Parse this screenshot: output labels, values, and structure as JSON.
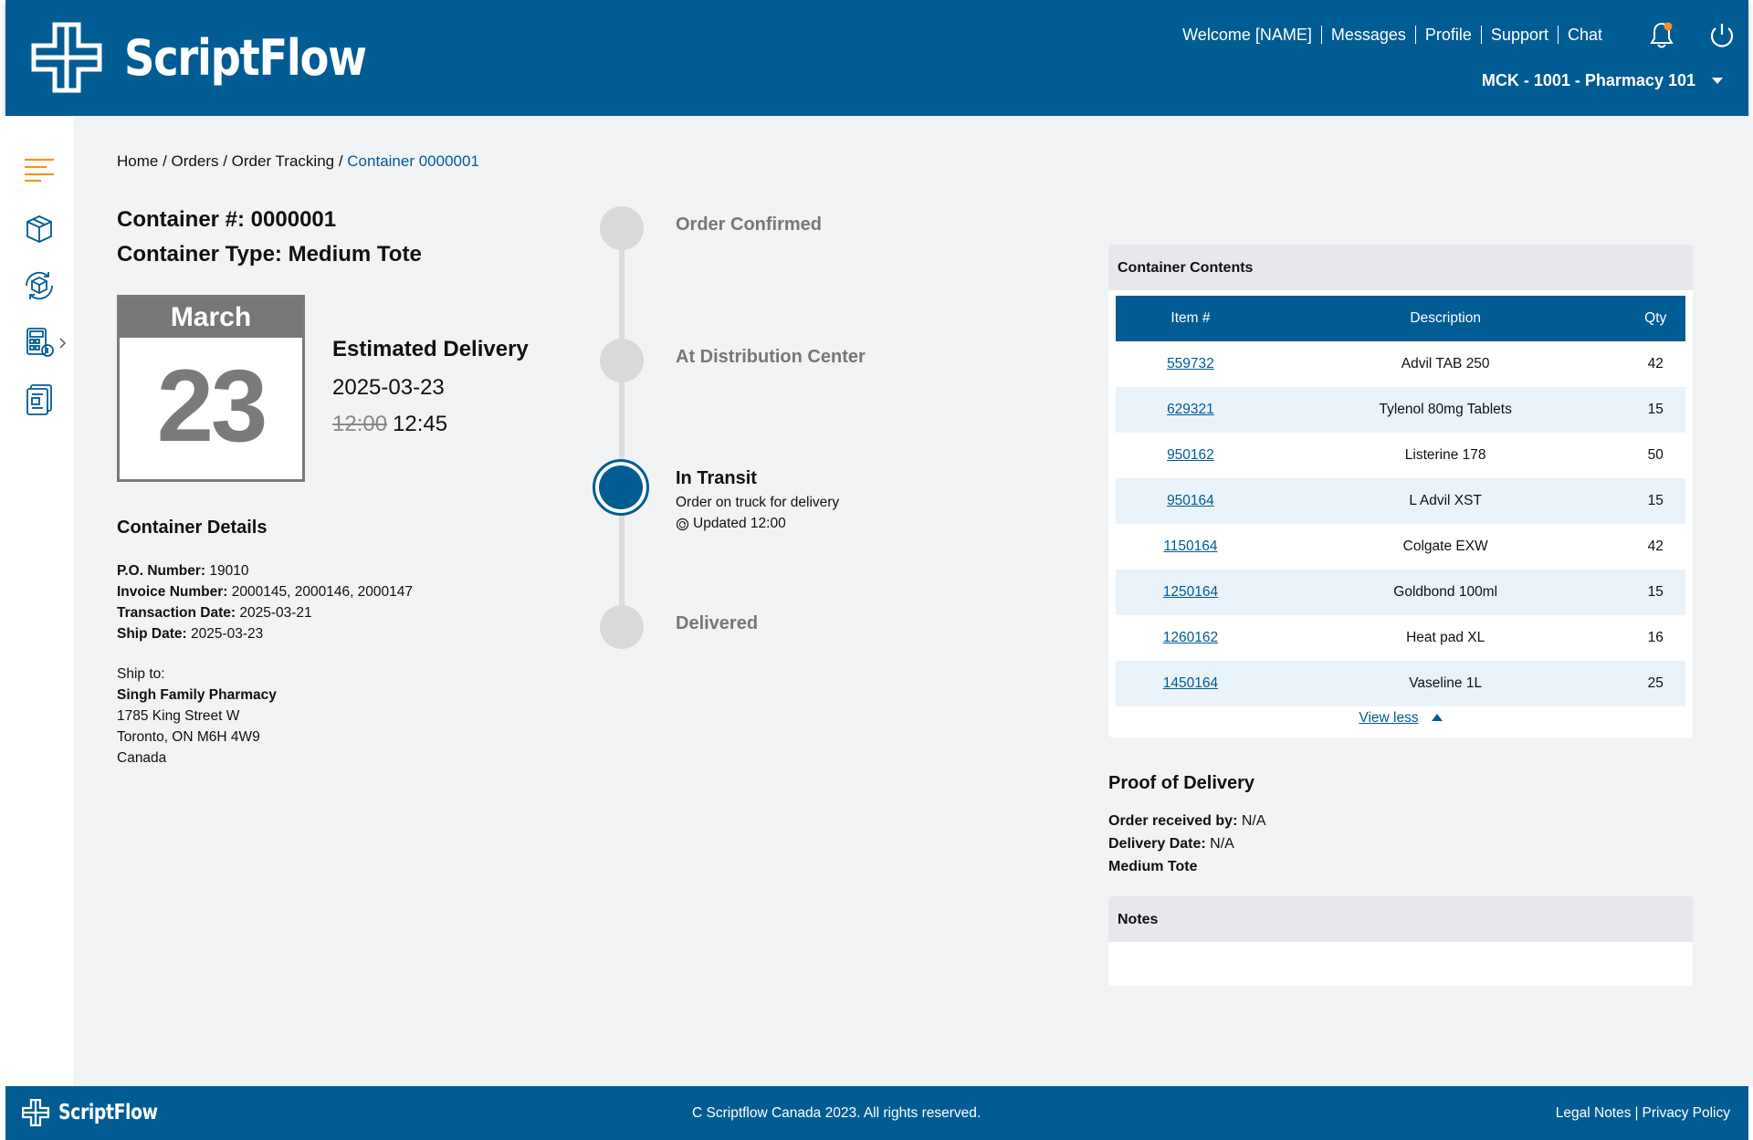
{
  "header": {
    "brand": "ScriptFlow",
    "nav": [
      "Welcome [NAME]",
      "Messages",
      "Profile",
      "Support",
      "Chat"
    ],
    "account": "MCK - 1001 - Pharmacy 101",
    "accent_color": "#005c93",
    "notification_color": "#f7931e"
  },
  "sidebar": {
    "icons": [
      "menu-icon",
      "box-icon",
      "box-cycle-icon",
      "calculator-icon",
      "report-icon"
    ]
  },
  "breadcrumb": {
    "items": [
      "Home",
      "Orders",
      "Order Tracking"
    ],
    "separator": " / ",
    "current": "Container 0000001"
  },
  "container": {
    "number_line": "Container #: 0000001",
    "type_line": "Container Type: Medium Tote"
  },
  "calendar": {
    "month": "March",
    "day": "23"
  },
  "estimate": {
    "label": "Estimated Delivery",
    "date": "2025-03-23",
    "old_time": "12:00",
    "new_time": "12:45"
  },
  "details": {
    "heading": "Container Details",
    "po_label": "P.O. Number:",
    "po_value": "19010",
    "invoice_label": "Invoice Number:",
    "invoice_value": "2000145, 2000146, 2000147",
    "transaction_label": "Transaction Date:",
    "transaction_value": "2025-03-21",
    "ship_label": "Ship Date:",
    "ship_value": "2025-03-23",
    "ship_to_label": "Ship to:",
    "ship_to_name": "Singh Family Pharmacy",
    "address1": "1785 King Street W",
    "address2": "Toronto, ON M6H 4W9",
    "address3": "Canada"
  },
  "timeline": {
    "steps": [
      {
        "label": "Order Confirmed",
        "state": "inactive"
      },
      {
        "label": "At Distribution Center",
        "state": "inactive"
      },
      {
        "label": "In Transit",
        "state": "active"
      },
      {
        "label": "Delivered",
        "state": "inactive"
      }
    ],
    "active_sub": "Order on truck for delivery",
    "active_updated": "Updated 12:00"
  },
  "contents": {
    "title": "Container Contents",
    "columns": [
      "Item #",
      "Description",
      "Qty"
    ],
    "rows": [
      {
        "item": "559732",
        "desc": "Advil TAB 250",
        "qty": "42"
      },
      {
        "item": "629321",
        "desc": "Tylenol 80mg Tablets",
        "qty": "15"
      },
      {
        "item": "950162",
        "desc": "Listerine 178",
        "qty": "50"
      },
      {
        "item": "950164",
        "desc": "L Advil XST",
        "qty": "15"
      },
      {
        "item": "1150164",
        "desc": "Colgate EXW",
        "qty": "42"
      },
      {
        "item": "1250164",
        "desc": "Goldbond 100ml",
        "qty": "15"
      },
      {
        "item": "1260162",
        "desc": "Heat pad XL",
        "qty": "16"
      },
      {
        "item": "1450164",
        "desc": "Vaseline 1L",
        "qty": "25"
      }
    ],
    "view_less": "View less"
  },
  "proof": {
    "heading": "Proof of Delivery",
    "received_label": "Order received by:",
    "received_value": "N/A",
    "date_label": "Delivery Date:",
    "date_value": "N/A",
    "type": "Medium Tote"
  },
  "notes": {
    "title": "Notes"
  },
  "footer": {
    "brand": "ScriptFlow",
    "copyright": "C Scriptflow Canada 2023. All rights reserved.",
    "legal": "Legal Notes",
    "separator": "|",
    "privacy": "Privacy Policy"
  }
}
